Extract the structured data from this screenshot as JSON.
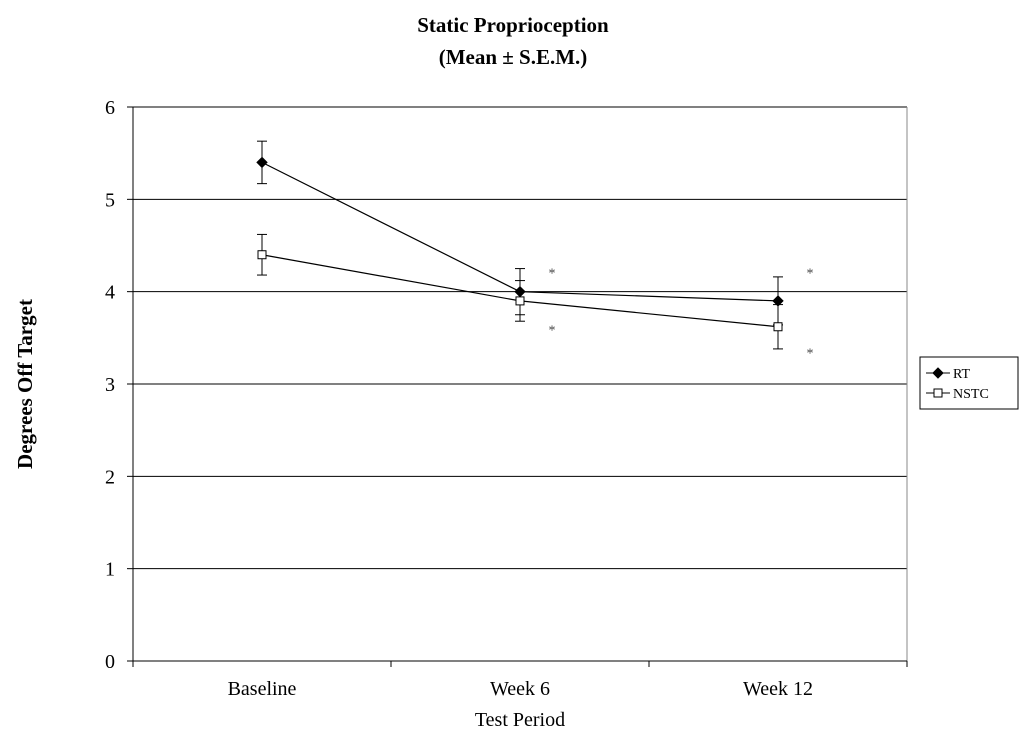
{
  "chart_data": {
    "type": "line",
    "title": "Static Proprioception",
    "subtitle": "(Mean ±  S.E.M.)",
    "xlabel": "Test Period",
    "ylabel": "Degrees Off Target",
    "categories": [
      "Baseline",
      "Week 6",
      "Week 12"
    ],
    "ylim": [
      0,
      6
    ],
    "yticks": [
      "0",
      "1",
      "2",
      "3",
      "4",
      "5",
      "6"
    ],
    "grid": true,
    "legend_position": "right",
    "series": [
      {
        "name": "RT",
        "values": [
          5.4,
          4.0,
          3.9
        ],
        "error": [
          0.23,
          0.25,
          0.26
        ],
        "marker": "filled-diamond",
        "color": "#000000"
      },
      {
        "name": "NSTC",
        "values": [
          4.4,
          3.9,
          3.62
        ],
        "error": [
          0.22,
          0.22,
          0.24
        ],
        "marker": "open-square",
        "color": "#000000"
      }
    ],
    "annotations": [
      {
        "text": "*",
        "category": "Week 6",
        "y": 4.22
      },
      {
        "text": "*",
        "category": "Week 6",
        "y": 3.6
      },
      {
        "text": "*",
        "category": "Week 12",
        "y": 4.22
      },
      {
        "text": "*",
        "category": "Week 12",
        "y": 3.35
      }
    ]
  }
}
